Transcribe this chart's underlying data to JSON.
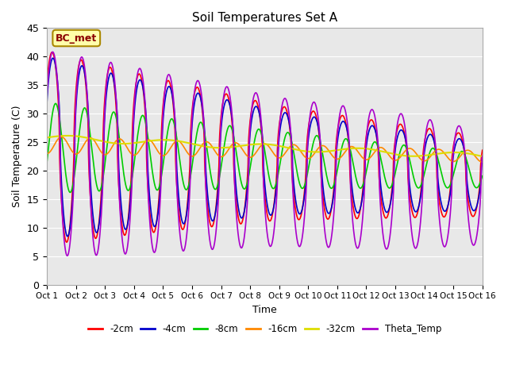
{
  "title": "Soil Temperatures Set A",
  "xlabel": "Time",
  "ylabel": "Soil Temperature (C)",
  "ylim": [
    0,
    45
  ],
  "xlim": [
    0,
    15
  ],
  "annotation": "BC_met",
  "tick_labels": [
    "Oct 1",
    "Oct 2",
    "Oct 3",
    "Oct 4",
    "Oct 5",
    "Oct 6",
    "Oct 7",
    "Oct 8",
    "Oct 9",
    "Oct 10",
    "Oct 11",
    "Oct 12",
    "Oct 13",
    "Oct 14",
    "Oct 15",
    "Oct 16"
  ],
  "series": [
    {
      "label": "-2cm",
      "color": "#ff0000",
      "lw": 1.2
    },
    {
      "label": "-4cm",
      "color": "#0000cc",
      "lw": 1.2
    },
    {
      "label": "-8cm",
      "color": "#00cc00",
      "lw": 1.2
    },
    {
      "label": "-16cm",
      "color": "#ff8800",
      "lw": 1.2
    },
    {
      "label": "-32cm",
      "color": "#dddd00",
      "lw": 1.5
    },
    {
      "label": "Theta_Temp",
      "color": "#aa00cc",
      "lw": 1.2
    }
  ],
  "background_color": "#e8e8e8",
  "title_fontsize": 11,
  "axis_bg": "#e8e8e8"
}
